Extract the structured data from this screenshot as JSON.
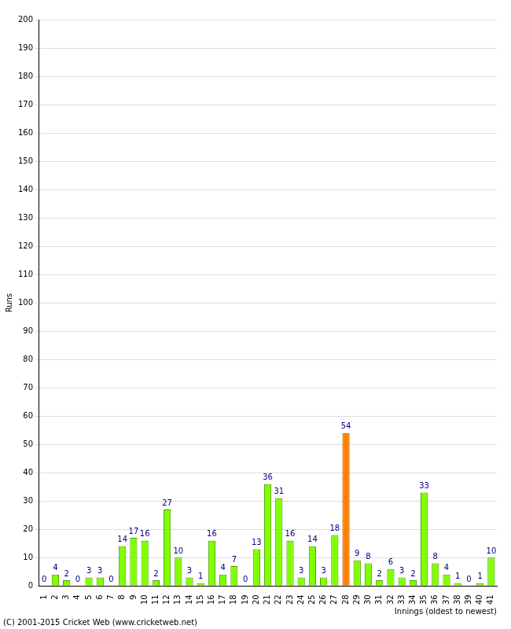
{
  "chart_data": {
    "type": "bar",
    "x_label": "Innings (oldest to newest)",
    "y_label": "Runs",
    "annotations": [
      "(C) 2001-2015 Cricket Web (www.cricketweb.net)"
    ],
    "categories": [
      "1",
      "2",
      "3",
      "4",
      "5",
      "6",
      "7",
      "8",
      "9",
      "10",
      "11",
      "12",
      "13",
      "14",
      "15",
      "16",
      "17",
      "18",
      "19",
      "20",
      "21",
      "22",
      "23",
      "24",
      "25",
      "26",
      "27",
      "28",
      "29",
      "30",
      "31",
      "32",
      "33",
      "34",
      "35",
      "36",
      "37",
      "38",
      "39",
      "40",
      "41"
    ],
    "values": [
      0,
      4,
      2,
      0,
      3,
      3,
      0,
      14,
      17,
      16,
      2,
      27,
      10,
      3,
      1,
      16,
      4,
      7,
      0,
      13,
      36,
      31,
      16,
      3,
      14,
      3,
      18,
      54,
      9,
      8,
      2,
      6,
      3,
      2,
      33,
      8,
      4,
      1,
      0,
      1,
      10
    ],
    "colors": [
      "#80ff00",
      "#80ff00",
      "#80ff00",
      "#80ff00",
      "#80ff00",
      "#80ff00",
      "#80ff00",
      "#80ff00",
      "#80ff00",
      "#80ff00",
      "#80ff00",
      "#80ff00",
      "#80ff00",
      "#80ff00",
      "#80ff00",
      "#80ff00",
      "#80ff00",
      "#80ff00",
      "#80ff00",
      "#80ff00",
      "#80ff00",
      "#80ff00",
      "#80ff00",
      "#80ff00",
      "#80ff00",
      "#80ff00",
      "#80ff00",
      "#ff8000",
      "#80ff00",
      "#80ff00",
      "#80ff00",
      "#80ff00",
      "#80ff00",
      "#80ff00",
      "#80ff00",
      "#80ff00",
      "#80ff00",
      "#80ff00",
      "#80ff00",
      "#80ff00",
      "#80ff00"
    ],
    "ylim": [
      0,
      200
    ],
    "yticks": [
      0,
      10,
      20,
      30,
      40,
      50,
      60,
      70,
      80,
      90,
      100,
      110,
      120,
      130,
      140,
      150,
      160,
      170,
      180,
      190,
      200
    ],
    "grid": true,
    "data_labels": true
  }
}
